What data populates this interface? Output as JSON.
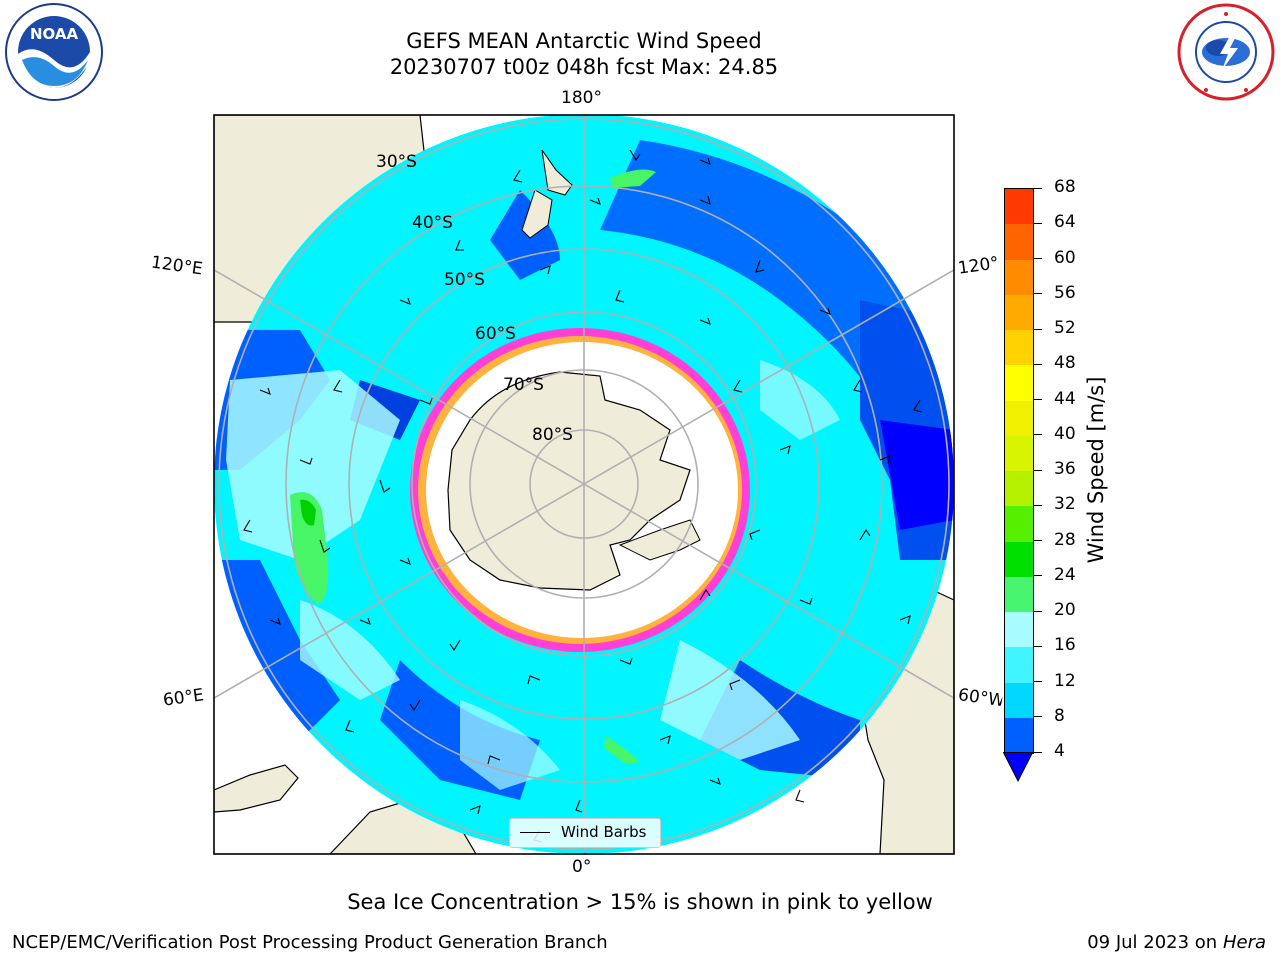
{
  "header": {
    "title_line1": "GEFS MEAN Antarctic Wind Speed",
    "title_line2": "20230707 t00z 048h fcst   Max: 24.85"
  },
  "logos": {
    "left_text": "NOAA",
    "right_icon": "national-weather-service-logo",
    "left_icon": "noaa-logo"
  },
  "map": {
    "longitude_labels": {
      "top": "180°",
      "bottom": "0°",
      "upper_left": "120°E",
      "upper_right": "120°",
      "lower_left": "60°E",
      "lower_right": "60°W"
    },
    "latitude_labels": [
      "30°S",
      "40°S",
      "50°S",
      "60°S",
      "70°S",
      "80°S"
    ],
    "legend_label": "Wind Barbs",
    "colors": {
      "land": "#efecd9",
      "ocean_low": "#0000ff",
      "ocean_mid": "#00f5ff",
      "ocean_light": "#a8fcff",
      "green": "#47f567",
      "sea_ice_pink": "#ff3fd6",
      "sea_ice_yellow": "#ffc02e",
      "grid": "#b0b0b0"
    }
  },
  "colorbar": {
    "label": "Wind Speed [m/s]",
    "ticks": [
      "4",
      "8",
      "12",
      "16",
      "20",
      "24",
      "28",
      "32",
      "36",
      "40",
      "44",
      "48",
      "52",
      "56",
      "60",
      "64",
      "68"
    ],
    "colors": [
      "#0060ff",
      "#00d8ff",
      "#40f5ff",
      "#a8fcff",
      "#48f570",
      "#00e000",
      "#55f000",
      "#b4f000",
      "#d8f400",
      "#f0f000",
      "#ffff00",
      "#ffd200",
      "#ffaa00",
      "#ff8c00",
      "#ff6400",
      "#ff3a00",
      "#ff0000"
    ],
    "under_color": "#0000ff"
  },
  "notes": {
    "sea_ice": "Sea Ice Concentration > 15% is shown in pink to yellow",
    "credit": "NCEP/EMC/Verification Post Processing Product Generation Branch",
    "date_prefix": "09 Jul 2023 on ",
    "date_machine": "Hera"
  }
}
